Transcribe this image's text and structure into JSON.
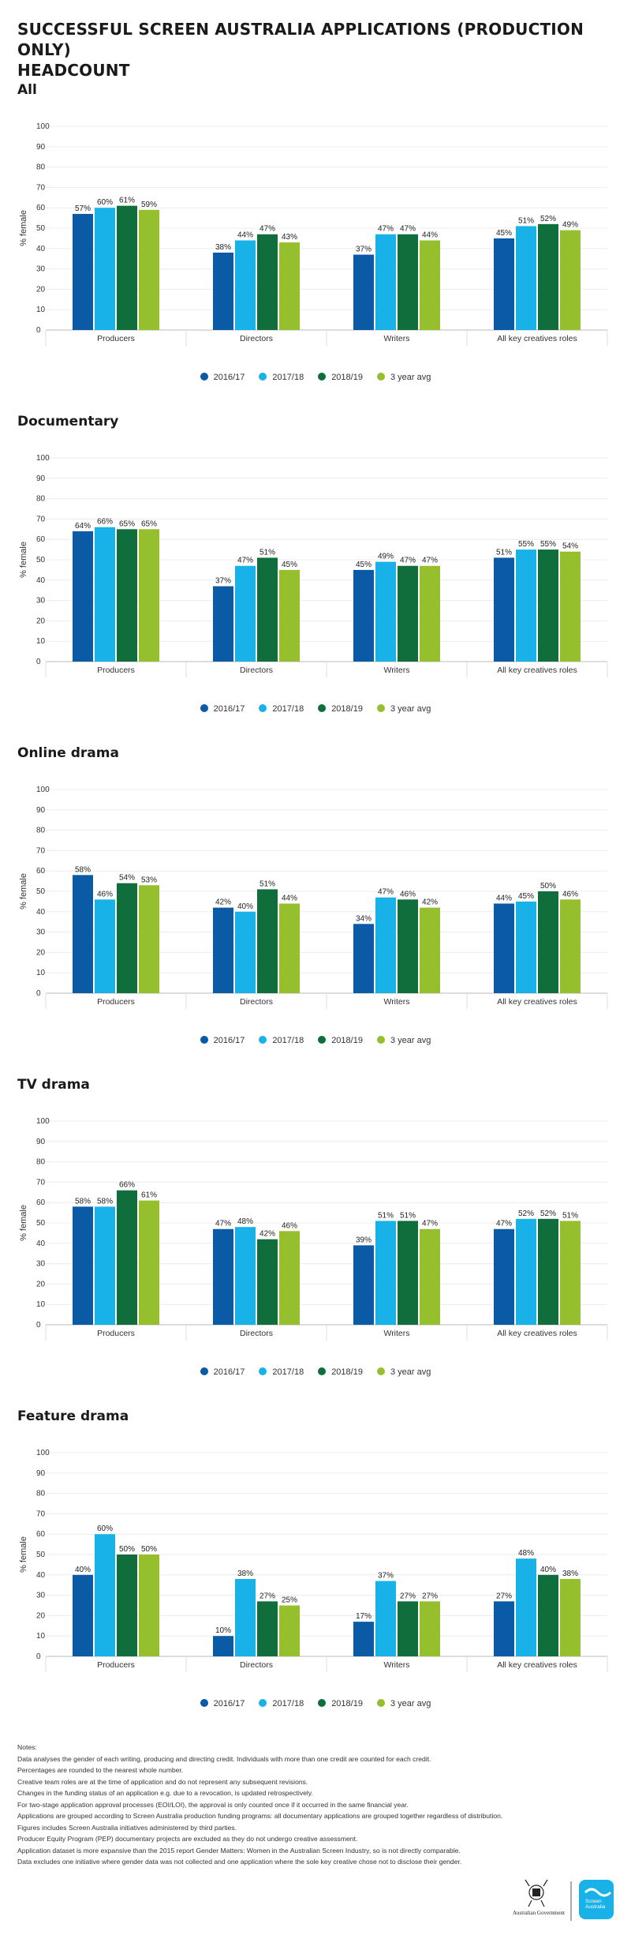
{
  "title": [
    "SUCCESSFUL SCREEN AUSTRALIA APPLICATIONS (PRODUCTION ONLY)",
    "HEADCOUNT"
  ],
  "colors": {
    "2016/17": "#0a5aa5",
    "2017/18": "#19b2e8",
    "2018/19": "#0f6e3b",
    "3 year avg": "#96bf2d"
  },
  "chart_data": [
    {
      "type": "bar",
      "title": "All",
      "ylabel": "% female",
      "ylim": [
        0,
        100
      ],
      "yticks": [
        "0",
        "10",
        "20",
        "30",
        "40",
        "50",
        "60",
        "70",
        "80",
        "90",
        "100"
      ],
      "categories": [
        "Producers",
        "Directors",
        "Writers",
        "All key creatives roles"
      ],
      "series": [
        {
          "name": "2016/17",
          "values": [
            57,
            38,
            37,
            45
          ]
        },
        {
          "name": "2017/18",
          "values": [
            60,
            44,
            47,
            51
          ]
        },
        {
          "name": "2018/19",
          "values": [
            61,
            47,
            47,
            52
          ]
        },
        {
          "name": "3 year avg",
          "values": [
            59,
            43,
            44,
            49
          ]
        }
      ],
      "labels": [
        [
          "57%",
          "38%",
          "37%",
          "45%"
        ],
        [
          "60%",
          "44%",
          "47%",
          "51%"
        ],
        [
          "61%",
          "47%",
          "47%",
          "52%"
        ],
        [
          "59%",
          "43%",
          "44%",
          "49%"
        ]
      ]
    },
    {
      "type": "bar",
      "title": "Documentary",
      "ylabel": "% female",
      "ylim": [
        0,
        100
      ],
      "yticks": [
        "0",
        "10",
        "20",
        "30",
        "40",
        "50",
        "60",
        "70",
        "80",
        "90",
        "100"
      ],
      "categories": [
        "Producers",
        "Directors",
        "Writers",
        "All key creatives roles"
      ],
      "series": [
        {
          "name": "2016/17",
          "values": [
            64,
            37,
            45,
            51
          ]
        },
        {
          "name": "2017/18",
          "values": [
            66,
            47,
            49,
            55
          ]
        },
        {
          "name": "2018/19",
          "values": [
            65,
            51,
            47,
            55
          ]
        },
        {
          "name": "3 year avg",
          "values": [
            65,
            45,
            47,
            54
          ]
        }
      ],
      "labels": [
        [
          "64%",
          "37%",
          "45%",
          "51%"
        ],
        [
          "66%",
          "47%",
          "49%",
          "55%"
        ],
        [
          "65%",
          "51%",
          "47%",
          "55%"
        ],
        [
          "65%",
          "45%",
          "47%",
          "54%"
        ]
      ]
    },
    {
      "type": "bar",
      "title": "Online drama",
      "ylabel": "% female",
      "ylim": [
        0,
        100
      ],
      "yticks": [
        "0",
        "10",
        "20",
        "30",
        "40",
        "50",
        "60",
        "70",
        "80",
        "90",
        "100"
      ],
      "categories": [
        "Producers",
        "Directors",
        "Writers",
        "All key creatives roles"
      ],
      "series": [
        {
          "name": "2016/17",
          "values": [
            58,
            42,
            34,
            44
          ]
        },
        {
          "name": "2017/18",
          "values": [
            46,
            40,
            47,
            45
          ]
        },
        {
          "name": "2018/19",
          "values": [
            54,
            51,
            46,
            50
          ]
        },
        {
          "name": "3 year avg",
          "values": [
            53,
            44,
            42,
            46
          ]
        }
      ],
      "labels": [
        [
          "58%",
          "42%",
          "34%",
          "44%"
        ],
        [
          "46%",
          "40%",
          "47%",
          "45%"
        ],
        [
          "54%",
          "51%",
          "46%",
          "50%"
        ],
        [
          "53%",
          "44%",
          "42%",
          "46%"
        ]
      ]
    },
    {
      "type": "bar",
      "title": "TV drama",
      "ylabel": "% female",
      "ylim": [
        0,
        100
      ],
      "yticks": [
        "0",
        "10",
        "20",
        "30",
        "40",
        "50",
        "60",
        "70",
        "80",
        "90",
        "100"
      ],
      "categories": [
        "Producers",
        "Directors",
        "Writers",
        "All key creatives roles"
      ],
      "series": [
        {
          "name": "2016/17",
          "values": [
            58,
            47,
            39,
            47
          ]
        },
        {
          "name": "2017/18",
          "values": [
            58,
            48,
            51,
            52
          ]
        },
        {
          "name": "2018/19",
          "values": [
            66,
            42,
            51,
            52
          ]
        },
        {
          "name": "3 year avg",
          "values": [
            61,
            46,
            47,
            51
          ]
        }
      ],
      "labels": [
        [
          "58%",
          "47%",
          "39%",
          "47%"
        ],
        [
          "58%",
          "48%",
          "51%",
          "52%"
        ],
        [
          "66%",
          "42%",
          "51%",
          "52%"
        ],
        [
          "61%",
          "46%",
          "47%",
          "51%"
        ]
      ]
    },
    {
      "type": "bar",
      "title": "Feature drama",
      "ylabel": "% female",
      "ylim": [
        0,
        100
      ],
      "yticks": [
        "0",
        "10",
        "20",
        "30",
        "40",
        "50",
        "60",
        "70",
        "80",
        "90",
        "100"
      ],
      "categories": [
        "Producers",
        "Directors",
        "Writers",
        "All key creatives roles"
      ],
      "series": [
        {
          "name": "2016/17",
          "values": [
            40,
            10,
            17,
            27
          ]
        },
        {
          "name": "2017/18",
          "values": [
            60,
            38,
            37,
            48
          ]
        },
        {
          "name": "2018/19",
          "values": [
            50,
            27,
            27,
            40
          ]
        },
        {
          "name": "3 year avg",
          "values": [
            50,
            25,
            27,
            38
          ]
        }
      ],
      "labels": [
        [
          "40%",
          "10%",
          "17%",
          "27%"
        ],
        [
          "60%",
          "38%",
          "37%",
          "48%"
        ],
        [
          "50%",
          "27%",
          "27%",
          "40%"
        ],
        [
          "50%",
          "25%",
          "27%",
          "38%"
        ]
      ]
    }
  ],
  "notes": {
    "heading": "Notes:",
    "lines": [
      "Data analyses the gender of each writing, producing and directing credit. Individuals with more than one credit are counted for each credit.",
      "Percentages are rounded to the nearest whole number.",
      "Creative team roles are at the time of application and do not represent any subsequent revisions.",
      "Changes in the funding status of an application e.g. due to a revocation, is updated retrospectively.",
      "For two-stage application approval processes (EOI/LOI), the approval is only counted once if it occurred in the same financial year.",
      "Applications are grouped according to Screen Australia production funding programs: all documentary applications are grouped together regardless of distribution.",
      "Figures includes Screen Australia initiatives administered by third parties.",
      "Producer Equity Program (PEP) documentary projects are excluded as they do not undergo creative assessment.",
      "Application dataset is more expansive than the 2015 report Gender Matters: Women in the Australian Screen Industry, so is not directly comparable.",
      "Data excludes one initiative where gender data was not collected and one application where the sole key creative chose not to disclose their gender."
    ]
  },
  "footer": {
    "gov_label": "Australian Government",
    "brand_label": [
      "Screen",
      "Australia"
    ]
  }
}
